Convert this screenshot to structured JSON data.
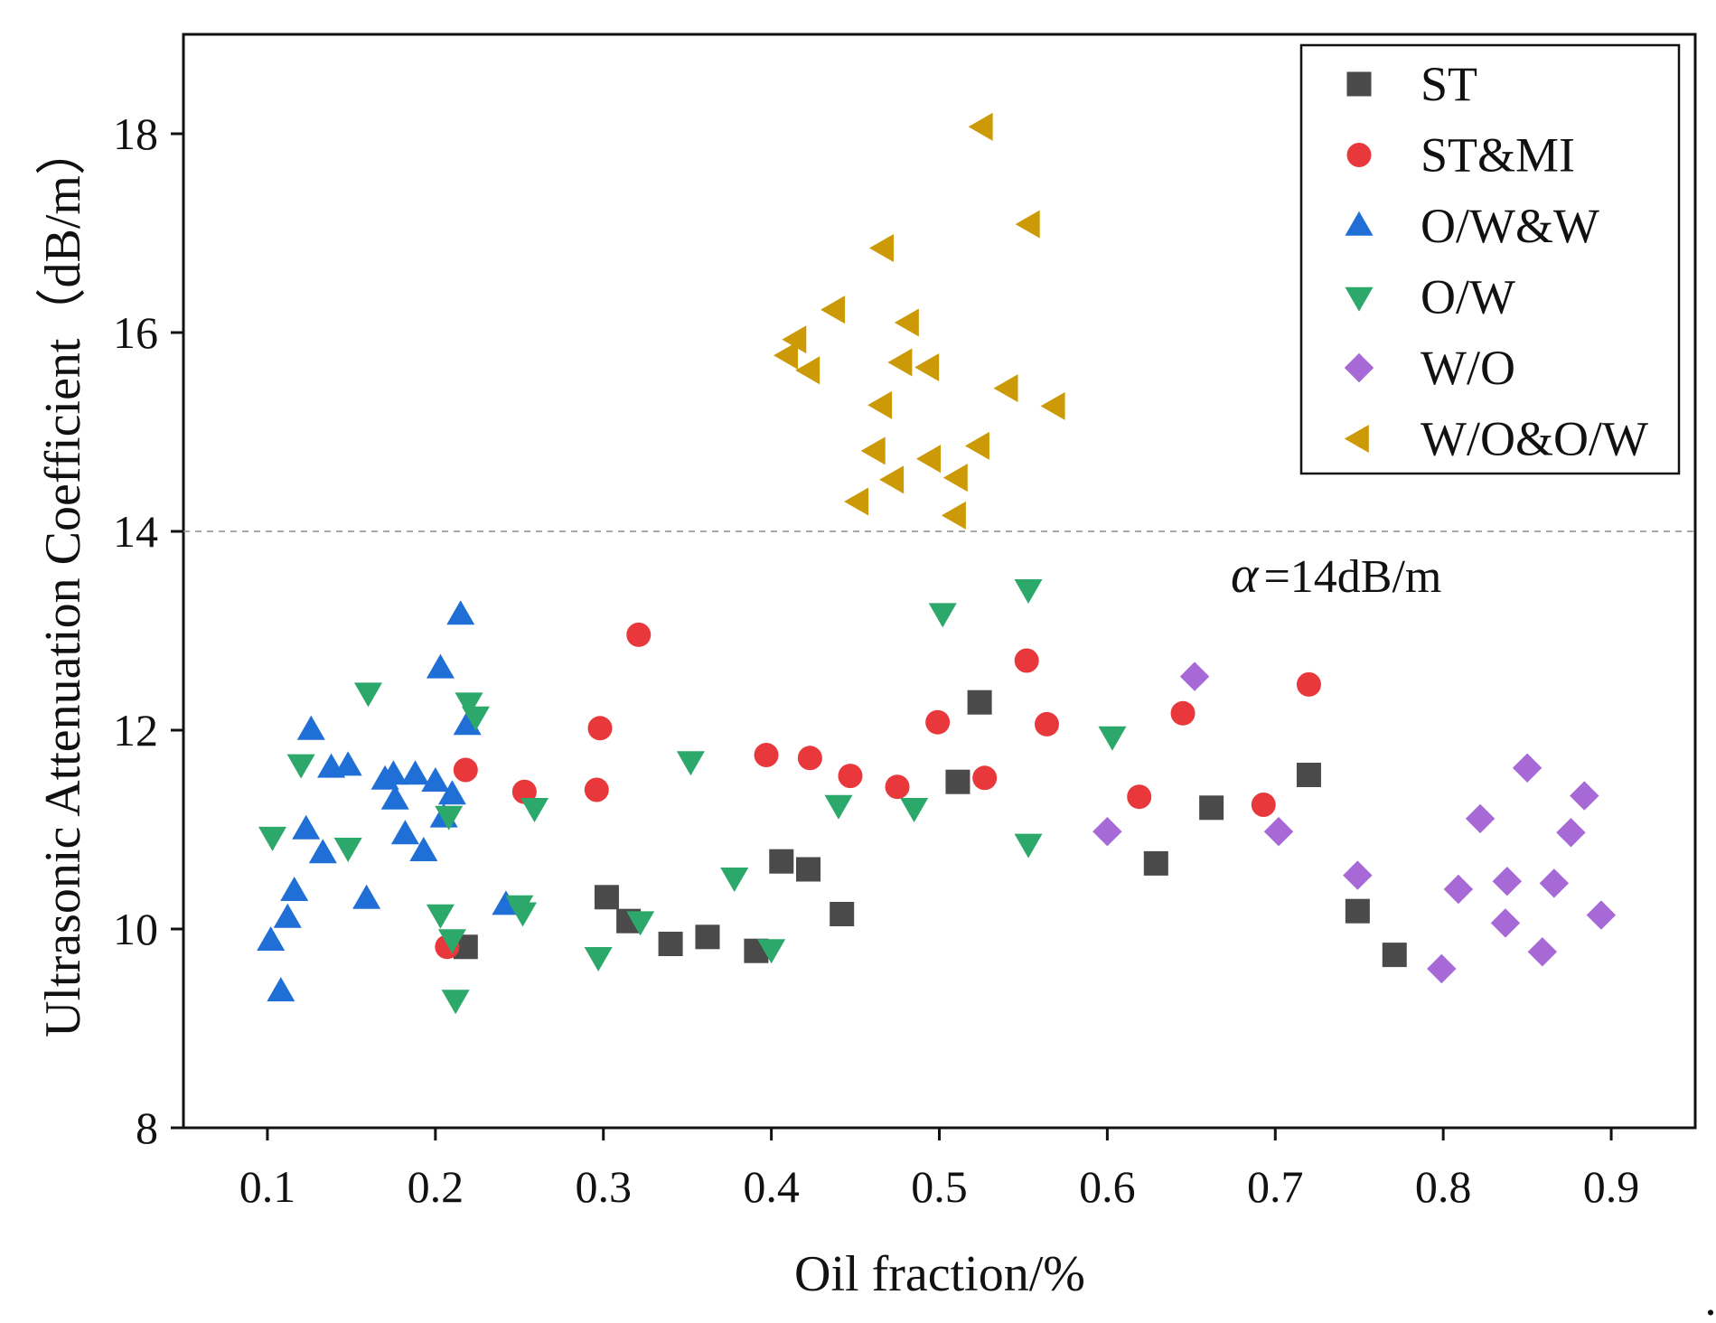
{
  "chart_data": {
    "type": "scatter",
    "title": "",
    "xlabel": "Oil fraction/%",
    "ylabel": "Ultrasonic Attenuation Coefficient（dB/m）",
    "xlim": [
      0.05,
      0.95
    ],
    "ylim": [
      8,
      19
    ],
    "xticks": [
      0.1,
      0.2,
      0.3,
      0.4,
      0.5,
      0.6,
      0.7,
      0.8,
      0.9
    ],
    "xtick_labels": [
      "0.1",
      "0.2",
      "0.3",
      "0.4",
      "0.5",
      "0.6",
      "0.7",
      "0.8",
      "0.9"
    ],
    "yticks": [
      8,
      10,
      12,
      14,
      16,
      18
    ],
    "ytick_labels": [
      "8",
      "10",
      "12",
      "14",
      "16",
      "18"
    ],
    "grid": false,
    "legend_position": "top-right",
    "reference_line": {
      "y": 14,
      "style": "dashed",
      "label_symbol": "α",
      "label_text": "=14dB/m"
    },
    "series": [
      {
        "name": "ST",
        "marker": "square",
        "color": "#4a4a4a",
        "points": [
          [
            0.218,
            9.82
          ],
          [
            0.302,
            10.32
          ],
          [
            0.315,
            10.08
          ],
          [
            0.34,
            9.85
          ],
          [
            0.362,
            9.92
          ],
          [
            0.391,
            9.78
          ],
          [
            0.406,
            10.68
          ],
          [
            0.422,
            10.6
          ],
          [
            0.442,
            10.15
          ],
          [
            0.511,
            11.48
          ],
          [
            0.524,
            12.28
          ],
          [
            0.629,
            10.66
          ],
          [
            0.662,
            11.22
          ],
          [
            0.72,
            11.55
          ],
          [
            0.749,
            10.18
          ],
          [
            0.771,
            9.74
          ]
        ]
      },
      {
        "name": "ST&MI",
        "marker": "circle",
        "color": "#e8383b",
        "points": [
          [
            0.207,
            9.82
          ],
          [
            0.218,
            11.6
          ],
          [
            0.253,
            11.38
          ],
          [
            0.296,
            11.4
          ],
          [
            0.298,
            12.02
          ],
          [
            0.321,
            12.96
          ],
          [
            0.397,
            11.75
          ],
          [
            0.423,
            11.72
          ],
          [
            0.447,
            11.54
          ],
          [
            0.475,
            11.43
          ],
          [
            0.499,
            12.08
          ],
          [
            0.527,
            11.52
          ],
          [
            0.552,
            12.7
          ],
          [
            0.564,
            12.06
          ],
          [
            0.619,
            11.33
          ],
          [
            0.645,
            12.17
          ],
          [
            0.693,
            11.25
          ],
          [
            0.72,
            12.46
          ]
        ]
      },
      {
        "name": "O/W&W",
        "marker": "triangle-up",
        "color": "#1f6fd6",
        "points": [
          [
            0.102,
            9.88
          ],
          [
            0.108,
            9.37
          ],
          [
            0.112,
            10.11
          ],
          [
            0.116,
            10.38
          ],
          [
            0.123,
            11.0
          ],
          [
            0.126,
            12.0
          ],
          [
            0.133,
            10.76
          ],
          [
            0.138,
            11.62
          ],
          [
            0.148,
            11.64
          ],
          [
            0.159,
            10.3
          ],
          [
            0.17,
            11.5
          ],
          [
            0.175,
            11.55
          ],
          [
            0.176,
            11.3
          ],
          [
            0.182,
            10.95
          ],
          [
            0.188,
            11.55
          ],
          [
            0.193,
            10.78
          ],
          [
            0.2,
            11.48
          ],
          [
            0.203,
            12.62
          ],
          [
            0.205,
            11.12
          ],
          [
            0.21,
            11.35
          ],
          [
            0.215,
            13.16
          ],
          [
            0.219,
            12.05
          ],
          [
            0.242,
            10.24
          ]
        ]
      },
      {
        "name": "O/W",
        "marker": "triangle-down",
        "color": "#2ca86b",
        "points": [
          [
            0.103,
            10.93
          ],
          [
            0.12,
            11.66
          ],
          [
            0.148,
            10.82
          ],
          [
            0.16,
            12.38
          ],
          [
            0.203,
            10.15
          ],
          [
            0.208,
            11.14
          ],
          [
            0.21,
            9.9
          ],
          [
            0.212,
            9.29
          ],
          [
            0.22,
            12.28
          ],
          [
            0.224,
            12.14
          ],
          [
            0.25,
            10.24
          ],
          [
            0.252,
            10.17
          ],
          [
            0.259,
            11.22
          ],
          [
            0.297,
            9.72
          ],
          [
            0.322,
            10.08
          ],
          [
            0.352,
            11.69
          ],
          [
            0.378,
            10.52
          ],
          [
            0.4,
            9.8
          ],
          [
            0.44,
            11.25
          ],
          [
            0.485,
            11.22
          ],
          [
            0.502,
            13.18
          ],
          [
            0.553,
            13.42
          ],
          [
            0.553,
            10.86
          ],
          [
            0.603,
            11.94
          ]
        ]
      },
      {
        "name": "W/O",
        "marker": "diamond",
        "color": "#a769d6",
        "points": [
          [
            0.6,
            10.98
          ],
          [
            0.652,
            12.54
          ],
          [
            0.702,
            10.98
          ],
          [
            0.749,
            10.54
          ],
          [
            0.799,
            9.6
          ],
          [
            0.809,
            10.4
          ],
          [
            0.822,
            11.11
          ],
          [
            0.837,
            10.06
          ],
          [
            0.838,
            10.48
          ],
          [
            0.85,
            11.62
          ],
          [
            0.859,
            9.77
          ],
          [
            0.866,
            10.46
          ],
          [
            0.876,
            10.97
          ],
          [
            0.884,
            11.34
          ],
          [
            0.894,
            10.14
          ]
        ]
      },
      {
        "name": "W/O&O/W",
        "marker": "triangle-left",
        "color": "#cc9a06",
        "points": [
          [
            0.41,
            15.77
          ],
          [
            0.415,
            15.93
          ],
          [
            0.423,
            15.62
          ],
          [
            0.438,
            16.23
          ],
          [
            0.452,
            14.3
          ],
          [
            0.462,
            14.81
          ],
          [
            0.466,
            15.27
          ],
          [
            0.467,
            16.85
          ],
          [
            0.473,
            14.52
          ],
          [
            0.478,
            15.7
          ],
          [
            0.482,
            16.1
          ],
          [
            0.494,
            15.65
          ],
          [
            0.495,
            14.73
          ],
          [
            0.51,
            14.16
          ],
          [
            0.511,
            14.54
          ],
          [
            0.524,
            14.86
          ],
          [
            0.526,
            18.07
          ],
          [
            0.541,
            15.44
          ],
          [
            0.554,
            17.09
          ],
          [
            0.569,
            15.26
          ]
        ]
      }
    ],
    "trailing_mark": "."
  }
}
